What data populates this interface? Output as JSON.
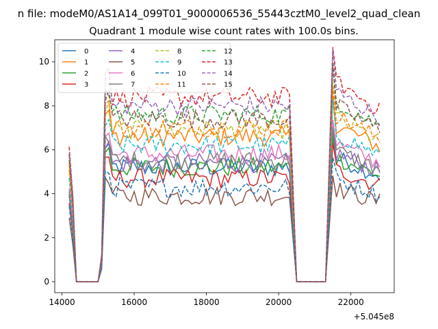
{
  "figure": {
    "suptitle": "n file: modeM0/AS1A14_099T01_9000006536_55443cztM0_level2_quad_clean",
    "offset_label": "+5.045e8"
  },
  "chart_data": {
    "type": "line",
    "title": "Quadrant 1 module wise count rates with 100.0s bins.",
    "xlabel": "",
    "ylabel": "",
    "x_offset": 504500000,
    "xlim": [
      13800,
      23200
    ],
    "ylim": [
      -0.5,
      11
    ],
    "xticks": [
      14000,
      16000,
      18000,
      20000,
      22000
    ],
    "yticks": [
      0,
      2,
      4,
      6,
      8,
      10
    ],
    "grid": false,
    "legend": {
      "placement": "top-left",
      "ncol": 4
    },
    "series": [
      {
        "name": "0",
        "color": "#1f77b4",
        "style": "solid",
        "level": 5.2
      },
      {
        "name": "1",
        "color": "#ff7f0e",
        "style": "solid",
        "level": 6.6
      },
      {
        "name": "2",
        "color": "#2ca02c",
        "style": "solid",
        "level": 5.2
      },
      {
        "name": "3",
        "color": "#d62728",
        "style": "solid",
        "level": 4.7
      },
      {
        "name": "4",
        "color": "#9467bd",
        "style": "solid",
        "level": 5.4
      },
      {
        "name": "5",
        "color": "#8c564b",
        "style": "solid",
        "level": 3.9
      },
      {
        "name": "6",
        "color": "#e377c2",
        "style": "solid",
        "level": 5.8
      },
      {
        "name": "7",
        "color": "#7f7f7f",
        "style": "solid",
        "level": 5.5
      },
      {
        "name": "8",
        "color": "#bcbd22",
        "style": "dashed",
        "level": 6.9
      },
      {
        "name": "9",
        "color": "#17becf",
        "style": "dashed",
        "level": 6.2
      },
      {
        "name": "10",
        "color": "#1f77b4",
        "style": "dashed",
        "level": 4.3
      },
      {
        "name": "11",
        "color": "#ff7f0e",
        "style": "dashed",
        "level": 7.0
      },
      {
        "name": "12",
        "color": "#2ca02c",
        "style": "dashed",
        "level": 7.6
      },
      {
        "name": "13",
        "color": "#d62728",
        "style": "dashed",
        "level": 8.4
      },
      {
        "name": "14",
        "color": "#9467bd",
        "style": "dashed",
        "level": 8.0
      },
      {
        "name": "15",
        "color": "#8c564b",
        "style": "dashed",
        "level": 7.4
      }
    ],
    "profile": {
      "bin_seconds": 100,
      "segments": [
        {
          "x_start": 14200,
          "x_end": 14300,
          "mode": "decay_from_start",
          "start_factor": 0.75
        },
        {
          "x_start": 14400,
          "x_end": 15000,
          "mode": "zero"
        },
        {
          "x_start": 15100,
          "x_end": 15100,
          "mode": "ramp",
          "factor": 0.15
        },
        {
          "x_start": 15200,
          "x_end": 15300,
          "mode": "spike",
          "factor": 1.15
        },
        {
          "x_start": 15400,
          "x_end": 20300,
          "mode": "noisy_level"
        },
        {
          "x_start": 20500,
          "x_end": 21300,
          "mode": "zero"
        },
        {
          "x_start": 21500,
          "x_end": 21500,
          "mode": "spike",
          "factor": 1.3
        },
        {
          "x_start": 21600,
          "x_end": 22800,
          "mode": "decay_level",
          "decay_to": 0.85
        }
      ]
    }
  }
}
